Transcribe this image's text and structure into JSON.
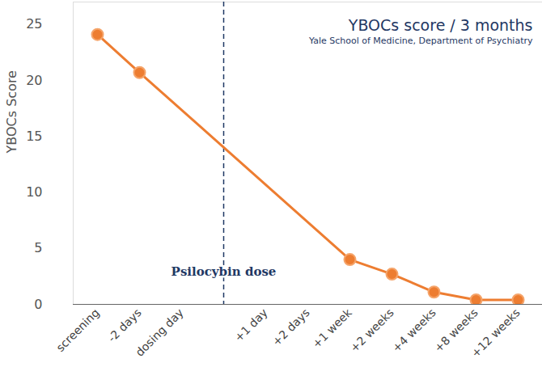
{
  "chart_data": {
    "type": "line",
    "title": "YBOCs score / 3 months",
    "subtitle": "Yale School of Medicine, Department of Psychiatry",
    "y_label": "YBOCs Score",
    "categories": [
      "screening",
      "-2 days",
      "dosing day",
      null,
      "+1 day",
      "+2 days",
      "+1 week",
      "+2 weeks",
      "+4 weeks",
      "+8 weeks",
      "+12 weeks"
    ],
    "values": [
      24.1,
      20.7,
      null,
      null,
      null,
      null,
      4.0,
      2.7,
      1.1,
      0.4,
      0.4
    ],
    "color": "#ed7d31",
    "marker": "circle",
    "ylim": [
      0,
      27
    ],
    "yticks": [
      0,
      5,
      10,
      15,
      20,
      25
    ],
    "grid": false,
    "annotations": [
      {
        "text": "Psilocybin dose",
        "line_style": "dashed"
      }
    ]
  }
}
